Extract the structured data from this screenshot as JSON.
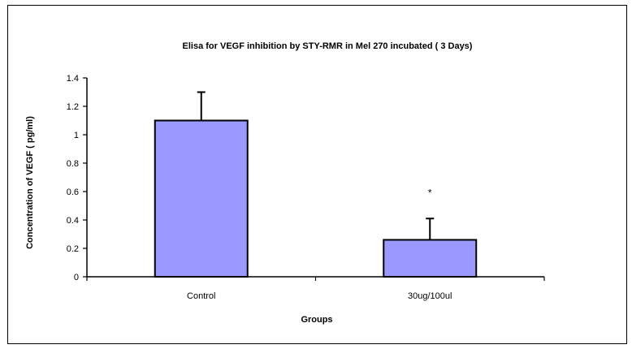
{
  "chart_data": {
    "type": "bar",
    "title": "Elisa for VEGF inhibition by STY-RMR in Mel 270 incubated ( 3 Days)",
    "xlabel": "Groups",
    "ylabel": "Concentration of VEGF ( pg/ml)",
    "categories": [
      "Control",
      "30ug/100ul"
    ],
    "values": [
      1.1,
      0.26
    ],
    "error_upper": [
      0.2,
      0.15
    ],
    "annotations": [
      "",
      "*"
    ],
    "ylim": [
      0,
      1.4
    ],
    "yticks": [
      "0",
      "0.2",
      "0.4",
      "0.6",
      "0.8",
      "1",
      "1.2",
      "1.4"
    ],
    "ytick_values": [
      0,
      0.2,
      0.4,
      0.6,
      0.8,
      1.0,
      1.2,
      1.4
    ],
    "grid": false,
    "legend": "none",
    "bar_color": "#9999FF",
    "edge_color": "#000000"
  }
}
